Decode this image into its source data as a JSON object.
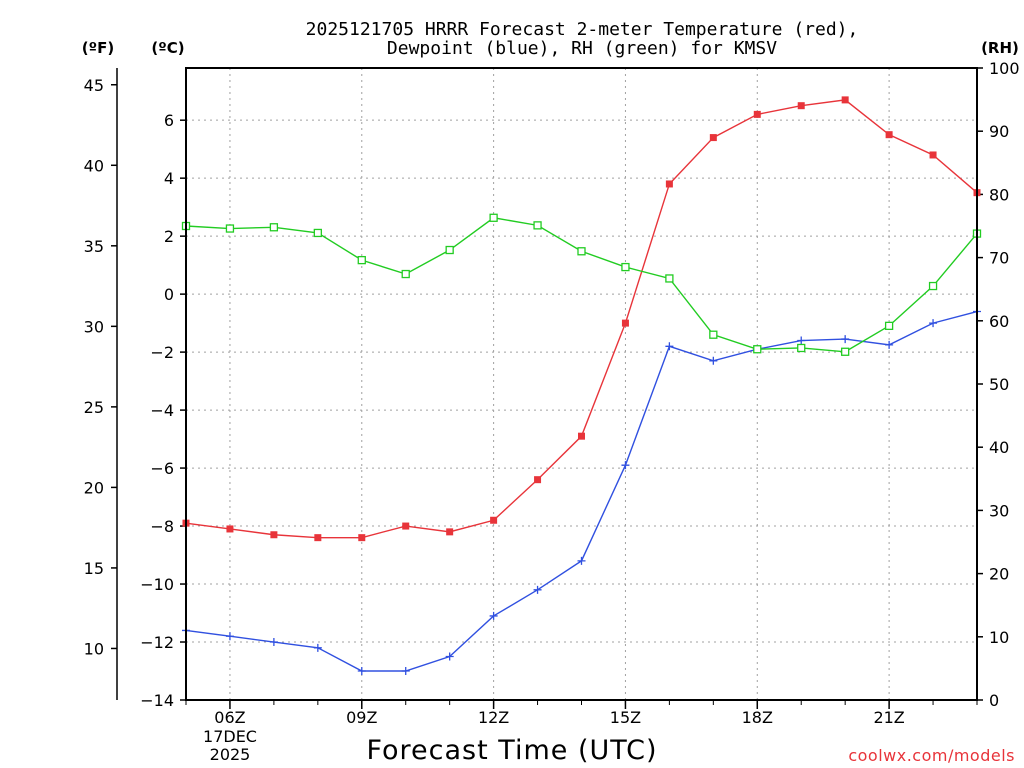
{
  "chart_data": {
    "type": "line",
    "title_line1": "2025121705 HRRR Forecast 2-meter Temperature (red),",
    "title_line2": "Dewpoint (blue), RH (green) for KMSV",
    "unit_f": "(ºF)",
    "unit_c": "(ºC)",
    "unit_rh": "(RH)",
    "xlabel": "Forecast Time (UTC)",
    "credit": "coolwx.com/models",
    "date_label_1": "17DEC",
    "date_label_2": "2025",
    "x_hours": [
      5,
      6,
      7,
      8,
      9,
      10,
      11,
      12,
      13,
      14,
      15,
      16,
      17,
      18,
      19,
      20,
      21,
      22,
      23
    ],
    "x_range": [
      5,
      23
    ],
    "x_tick_hours": [
      6,
      9,
      12,
      15,
      18,
      21
    ],
    "x_tick_labels": [
      "06Z",
      "09Z",
      "12Z",
      "15Z",
      "18Z",
      "21Z"
    ],
    "celsius_axis": {
      "range": [
        -14,
        7.8
      ],
      "ticks": [
        6,
        4,
        2,
        0,
        -2,
        -4,
        -6,
        -8,
        -10,
        -12,
        -14
      ],
      "tick_labels": [
        "6",
        "4",
        "2",
        "0",
        "−2",
        "−4",
        "−6",
        "−8",
        "−10",
        "−12",
        "−14"
      ]
    },
    "fahrenheit_axis": {
      "ticks": [
        45,
        40,
        35,
        30,
        25,
        20,
        15,
        10
      ],
      "tick_labels": [
        "45",
        "40",
        "35",
        "30",
        "25",
        "20",
        "15",
        "10"
      ]
    },
    "rh_axis": {
      "range": [
        0,
        100
      ],
      "ticks": [
        100,
        90,
        80,
        70,
        60,
        50,
        40,
        30,
        20,
        10,
        0
      ],
      "tick_labels": [
        "100",
        "90",
        "80",
        "70",
        "60",
        "50",
        "40",
        "30",
        "20",
        "10",
        "0"
      ]
    },
    "grid": true,
    "series": [
      {
        "name": "Temperature",
        "unit": "C",
        "color": "#e8343a",
        "marker": "filled-square",
        "values": [
          -7.9,
          -8.1,
          -8.3,
          -8.4,
          -8.4,
          -8.0,
          -8.2,
          -7.8,
          -6.4,
          -4.9,
          -1.0,
          3.8,
          5.4,
          6.2,
          6.5,
          6.7,
          5.5,
          4.8,
          3.5
        ]
      },
      {
        "name": "Dewpoint",
        "unit": "C",
        "color": "#3050e0",
        "marker": "plus",
        "values": [
          -11.6,
          -11.8,
          -12.0,
          -12.2,
          -13.0,
          -13.0,
          -12.5,
          -11.1,
          -10.2,
          -9.2,
          -5.9,
          -1.8,
          -2.3,
          -1.9,
          -1.6,
          -1.55,
          -1.75,
          -1.0,
          -0.6
        ]
      },
      {
        "name": "RH",
        "unit": "%",
        "color": "#22cc22",
        "marker": "open-square",
        "values": [
          75.0,
          74.6,
          74.8,
          73.9,
          69.6,
          67.4,
          71.2,
          76.3,
          75.1,
          71.0,
          68.5,
          66.7,
          57.8,
          55.5,
          55.7,
          55.1,
          59.2,
          65.5,
          73.8
        ]
      }
    ]
  }
}
